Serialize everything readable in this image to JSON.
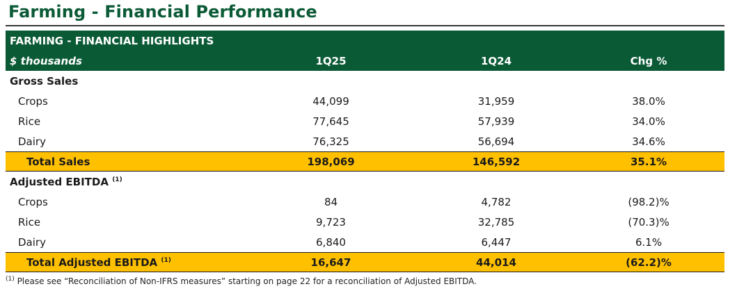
{
  "page_title": "Farming - Financial Performance",
  "table": {
    "heading": "FARMING  - FINANCIAL HIGHLIGHTS",
    "unit": "$ thousands",
    "columns": [
      "1Q25",
      "1Q24",
      "Chg %"
    ],
    "gross_sales": {
      "label": "Gross Sales",
      "rows": [
        {
          "label": "Crops",
          "q25": "44,099",
          "q24": "31,959",
          "chg": "38.0%"
        },
        {
          "label": "Rice",
          "q25": "77,645",
          "q24": "57,939",
          "chg": "34.0%"
        },
        {
          "label": "Dairy",
          "q25": "76,325",
          "q24": "56,694",
          "chg": "34.6%"
        }
      ],
      "total": {
        "label": "Total Sales",
        "q25": "198,069",
        "q24": "146,592",
        "chg": "35.1%"
      }
    },
    "adjusted_ebitda": {
      "label": "Adjusted EBITDA",
      "footnote_ref": "(1)",
      "rows": [
        {
          "label": "Crops",
          "q25": "84",
          "q24": "4,782",
          "chg": "(98.2)%"
        },
        {
          "label": "Rice",
          "q25": "9,723",
          "q24": "32,785",
          "chg": "(70.3)%"
        },
        {
          "label": "Dairy",
          "q25": "6,840",
          "q24": "6,447",
          "chg": "6.1%"
        }
      ],
      "total": {
        "label": "Total Adjusted EBITDA",
        "footnote_ref": "(1)",
        "q25": "16,647",
        "q24": "44,014",
        "chg": "(62.2)%"
      }
    }
  },
  "footnote": {
    "marker": "(1)",
    "text": " Please see “Reconciliation of Non-IFRS measures” starting on page 22 for a reconciliation of Adjusted EBITDA."
  },
  "colors": {
    "brand_green": "#0b5a36",
    "total_highlight": "#ffc000"
  }
}
